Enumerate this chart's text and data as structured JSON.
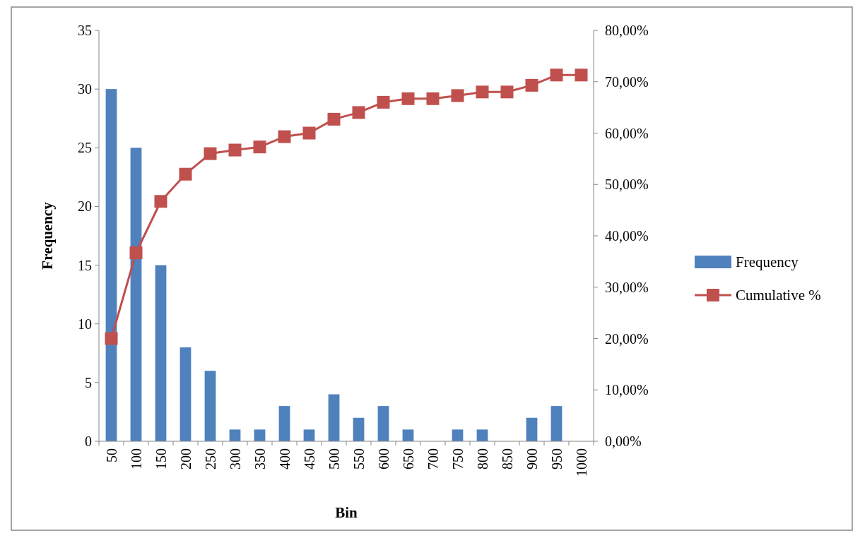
{
  "chart_data": {
    "type": "bar",
    "xlabel": "Bin",
    "ylabel": "Frequency",
    "categories": [
      "50",
      "100",
      "150",
      "200",
      "250",
      "300",
      "350",
      "400",
      "450",
      "500",
      "550",
      "600",
      "650",
      "700",
      "750",
      "800",
      "850",
      "900",
      "950",
      "1000"
    ],
    "series": [
      {
        "name": "Frequency",
        "color": "#4f81bd",
        "values": [
          30,
          25,
          15,
          8,
          6,
          1,
          1,
          3,
          1,
          4,
          2,
          3,
          1,
          0,
          1,
          1,
          0,
          2,
          3,
          0
        ]
      },
      {
        "name": "Cumulative %",
        "type": "line",
        "axis": "y2",
        "color": "#c0504d",
        "marker": "square",
        "values": [
          20,
          36.7,
          46.7,
          52,
          56,
          56.7,
          57.3,
          59.3,
          60,
          62.7,
          64,
          66,
          66.7,
          66.7,
          67.3,
          68,
          68,
          69.3,
          71.3,
          71.3
        ]
      }
    ],
    "ylim": [
      0,
      35
    ],
    "yticks": [
      0,
      5,
      10,
      15,
      20,
      25,
      30,
      35
    ],
    "y2lim": [
      0,
      80
    ],
    "y2ticks": [
      {
        "value": 0,
        "label": "0,00%"
      },
      {
        "value": 10,
        "label": "10,00%"
      },
      {
        "value": 20,
        "label": "20,00%"
      },
      {
        "value": 30,
        "label": "30,00%"
      },
      {
        "value": 40,
        "label": "40,00%"
      },
      {
        "value": 50,
        "label": "50,00%"
      },
      {
        "value": 60,
        "label": "60,00%"
      },
      {
        "value": 70,
        "label": "70,00%"
      },
      {
        "value": 80,
        "label": "80,00%"
      }
    ],
    "grid": false,
    "legend": "right"
  }
}
